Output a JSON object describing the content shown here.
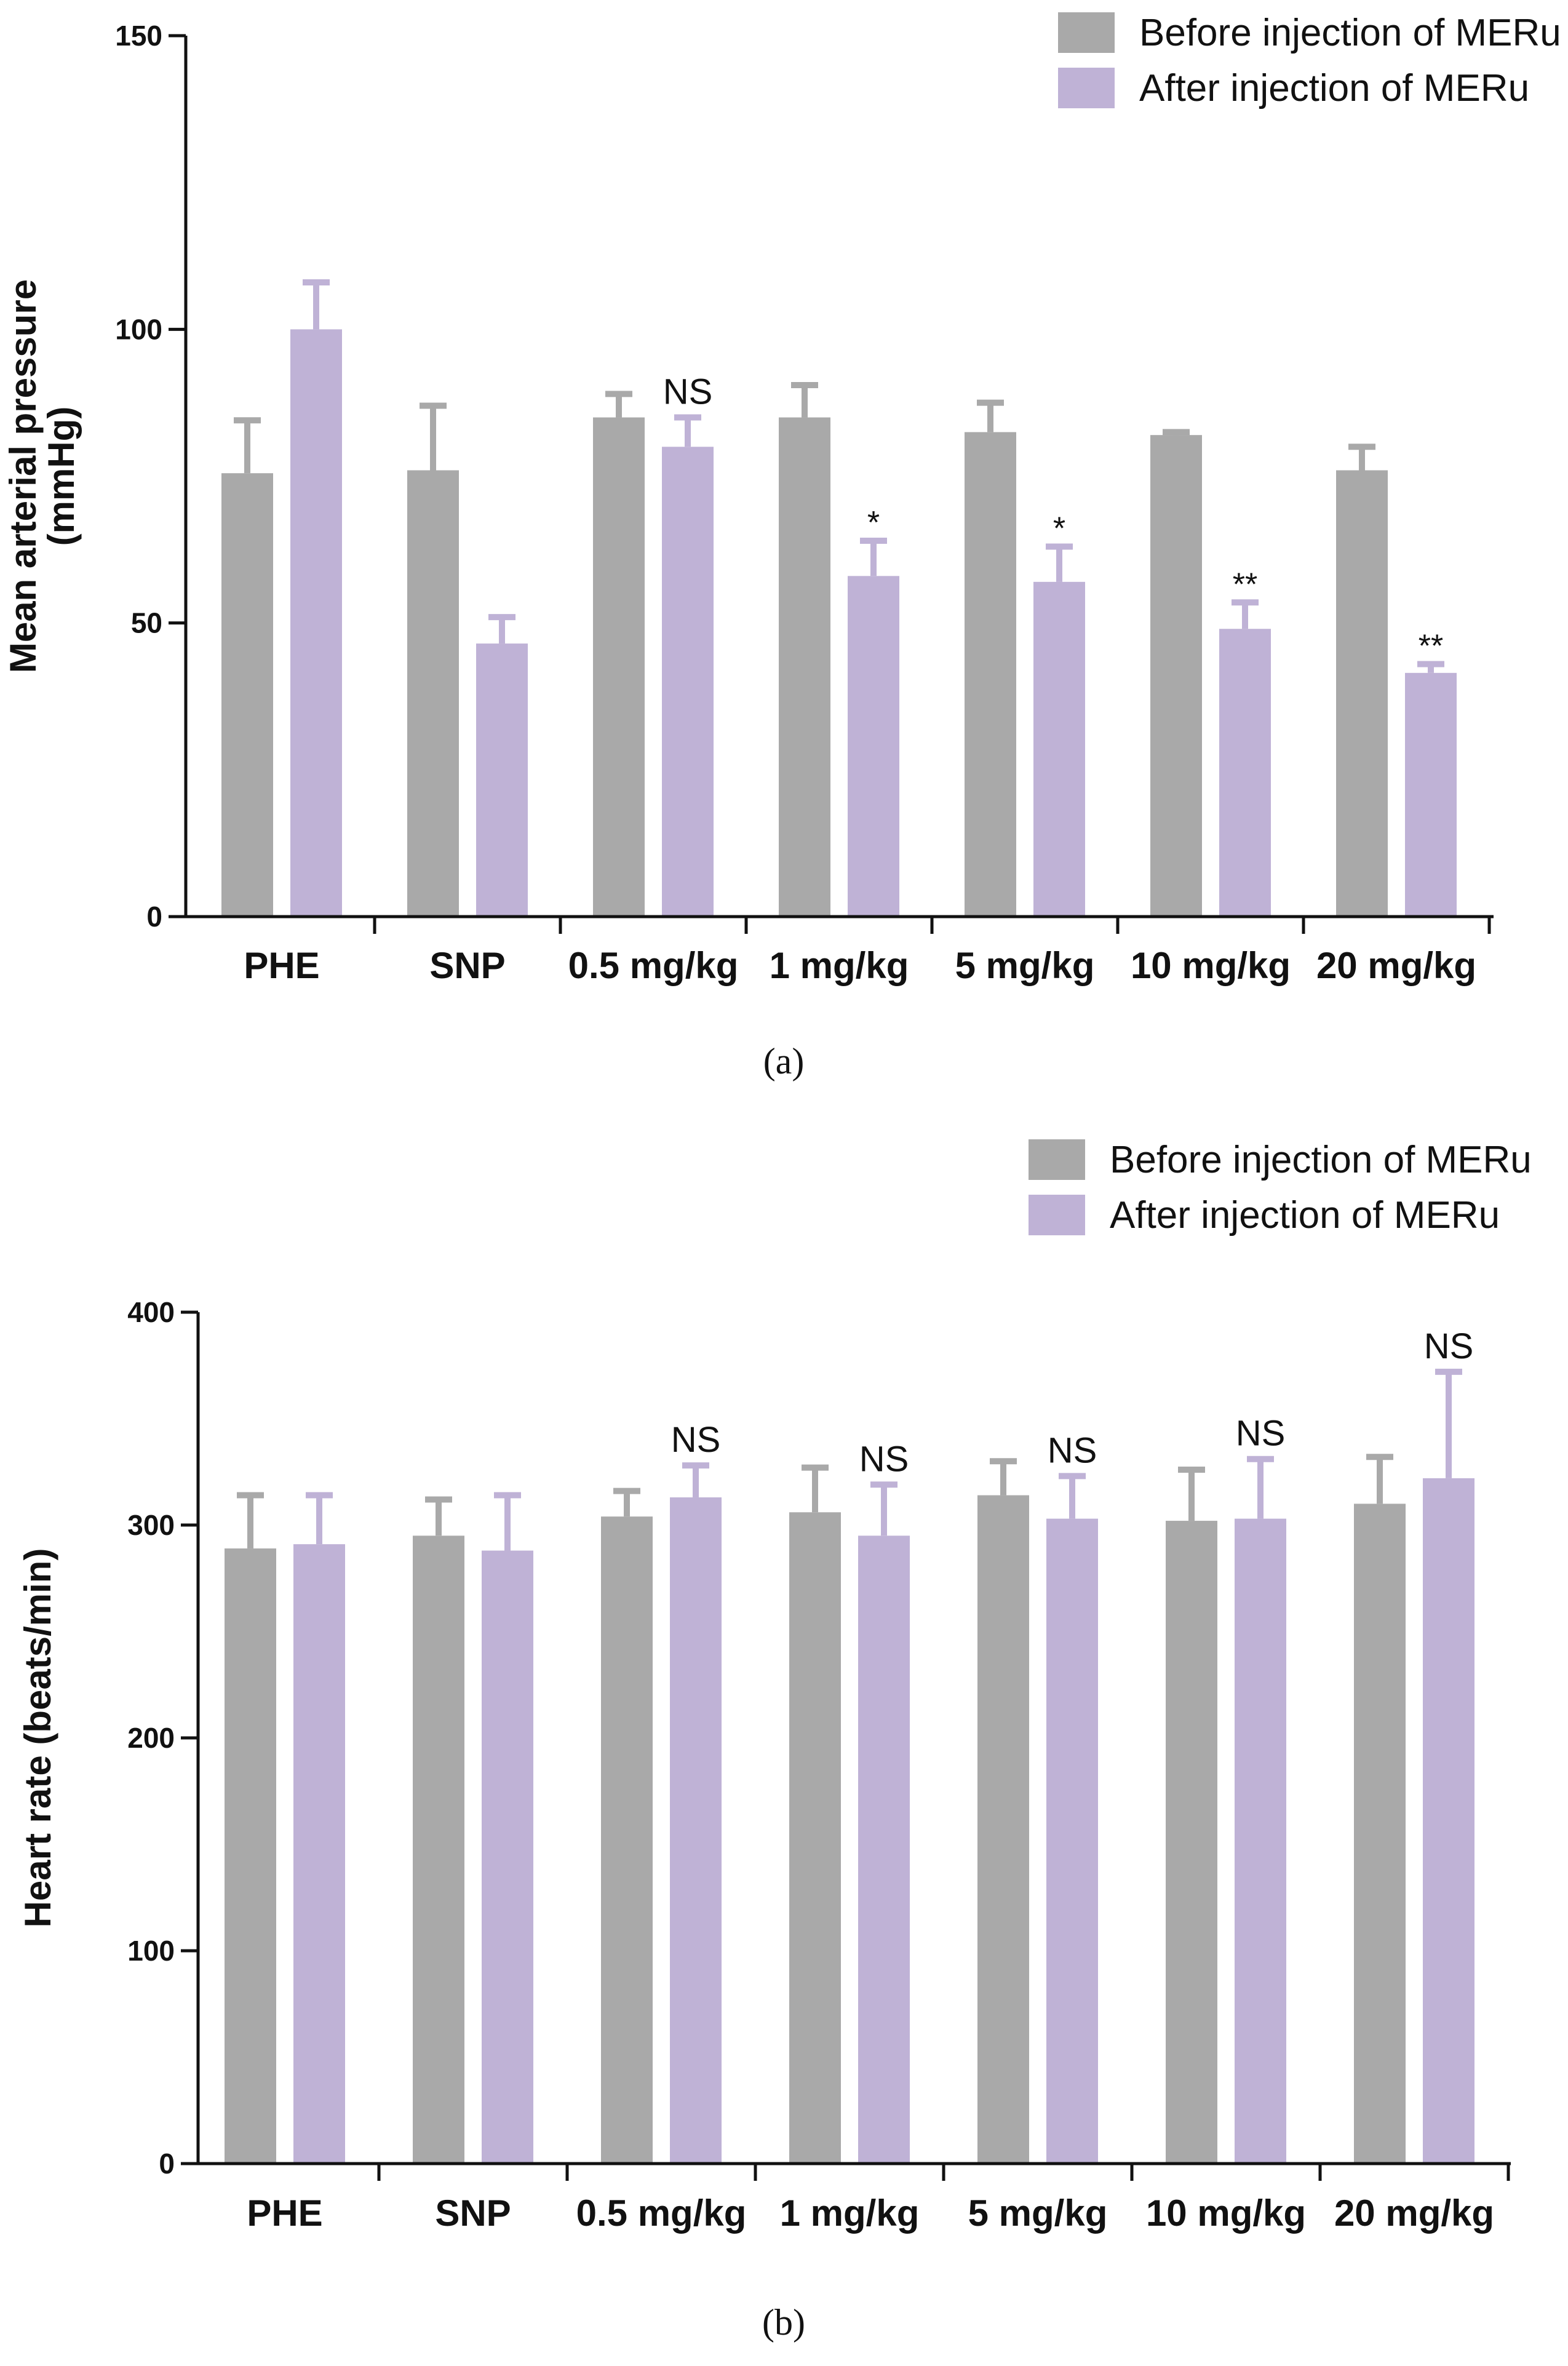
{
  "colors": {
    "before": "#a9a9a9",
    "after": "#bfb2d6",
    "axis": "#111111"
  },
  "chart_data": [
    {
      "id": "panel_a",
      "type": "bar",
      "panel_label": "(a)",
      "ylabel_lines": [
        "Mean arterial pressure",
        "(mmHg)"
      ],
      "ylim": [
        0,
        150
      ],
      "yticks": [
        0,
        50,
        100,
        150
      ],
      "legend_position": "top-right",
      "categories": [
        "PHE",
        "SNP",
        "0.5 mg/kg",
        "1 mg/kg",
        "5 mg/kg",
        "10 mg/kg",
        "20 mg/kg"
      ],
      "series": [
        {
          "name": "Before injection of MERu",
          "color_key": "before",
          "values": [
            75.5,
            76,
            85,
            85,
            82.5,
            82,
            76
          ],
          "errors": [
            9,
            11,
            4,
            5.5,
            5,
            0.5,
            4
          ]
        },
        {
          "name": "After injection of MERu",
          "color_key": "after",
          "values": [
            100,
            46.5,
            80,
            58,
            57,
            49,
            41.5
          ],
          "errors": [
            8,
            4.5,
            5,
            6,
            6,
            4.5,
            1.5
          ]
        }
      ],
      "annotations": [
        "",
        "",
        "NS",
        "*",
        "*",
        "**",
        "**"
      ]
    },
    {
      "id": "panel_b",
      "type": "bar",
      "panel_label": "(b)",
      "ylabel_lines": [
        "Heart rate (beats/min)"
      ],
      "ylim": [
        0,
        400
      ],
      "yticks": [
        0,
        100,
        200,
        300,
        400
      ],
      "legend_position": "top-right",
      "categories": [
        "PHE",
        "SNP",
        "0.5 mg/kg",
        "1 mg/kg",
        "5 mg/kg",
        "10 mg/kg",
        "20 mg/kg"
      ],
      "series": [
        {
          "name": "Before injection of MERu",
          "color_key": "before",
          "values": [
            289,
            295,
            304,
            306,
            314,
            302,
            310
          ],
          "errors": [
            25,
            17,
            12,
            21,
            16,
            24,
            22
          ]
        },
        {
          "name": "After injection of MERu",
          "color_key": "after",
          "values": [
            291,
            288,
            313,
            295,
            303,
            303,
            322
          ],
          "errors": [
            23,
            26,
            15,
            24,
            20,
            28,
            50
          ]
        }
      ],
      "annotations": [
        "",
        "",
        "NS",
        "NS",
        "NS",
        "NS",
        "NS"
      ]
    }
  ]
}
